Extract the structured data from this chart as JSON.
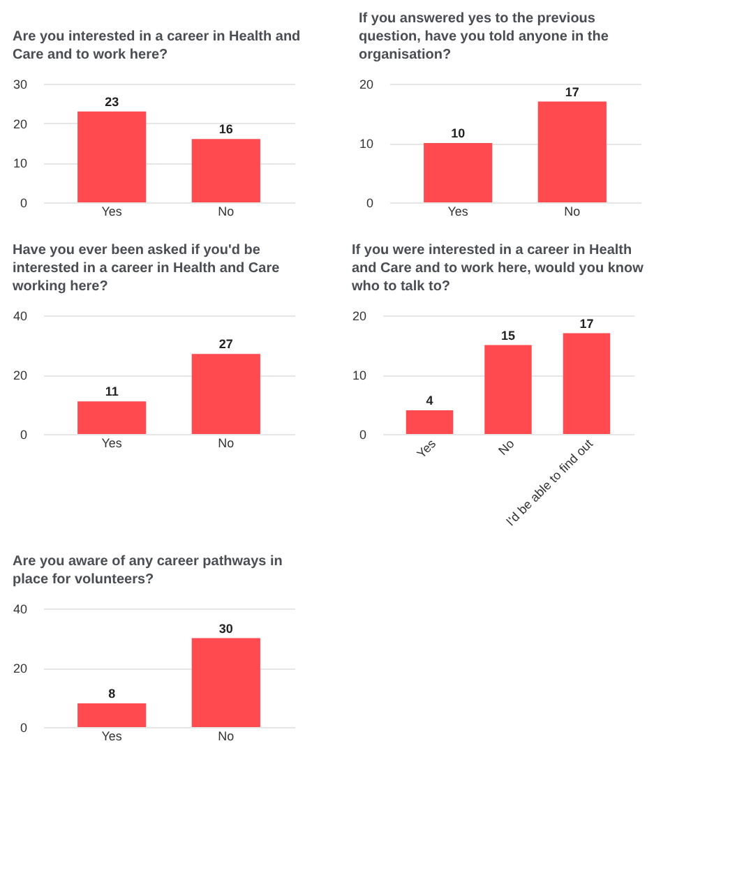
{
  "chart_data": [
    {
      "type": "bar",
      "title": "Are you interested in a career in Health and Care and to work here?",
      "categories": [
        "Yes",
        "No"
      ],
      "values": [
        23,
        16
      ],
      "color": "#ff4a4f",
      "ylim": [
        0,
        30
      ],
      "yticks": [
        0,
        10,
        20,
        30
      ],
      "grid": "y",
      "data_labels": true
    },
    {
      "type": "bar",
      "title": "If you answered yes to the previous question, have you told anyone in the organisation?",
      "categories": [
        "Yes",
        "No"
      ],
      "values": [
        10,
        17
      ],
      "color": "#ff4a4f",
      "ylim": [
        0,
        20
      ],
      "yticks": [
        0,
        10,
        20
      ],
      "grid": "y",
      "data_labels": true
    },
    {
      "type": "bar",
      "title": "Have you ever been asked if you'd be interested in a career in Health and Care working here?",
      "categories": [
        "Yes",
        "No"
      ],
      "values": [
        11,
        27
      ],
      "color": "#ff4a4f",
      "ylim": [
        0,
        40
      ],
      "yticks": [
        0,
        20,
        40
      ],
      "grid": "y",
      "data_labels": true
    },
    {
      "type": "bar",
      "title": "If you were interested in a career in Health and Care and to work here, would you know who to talk to?",
      "categories": [
        "Yes",
        "No",
        "I'd be able to find out"
      ],
      "values": [
        4,
        15,
        17
      ],
      "color": "#ff4a4f",
      "ylim": [
        0,
        20
      ],
      "yticks": [
        0,
        10,
        20
      ],
      "grid": "y",
      "data_labels": true
    },
    {
      "type": "bar",
      "title": "Are you aware of any career pathways in place for volunteers?",
      "categories": [
        "Yes",
        "No"
      ],
      "values": [
        8,
        30
      ],
      "color": "#ff4a4f",
      "ylim": [
        0,
        40
      ],
      "yticks": [
        0,
        20,
        40
      ],
      "grid": "y",
      "data_labels": true
    }
  ]
}
